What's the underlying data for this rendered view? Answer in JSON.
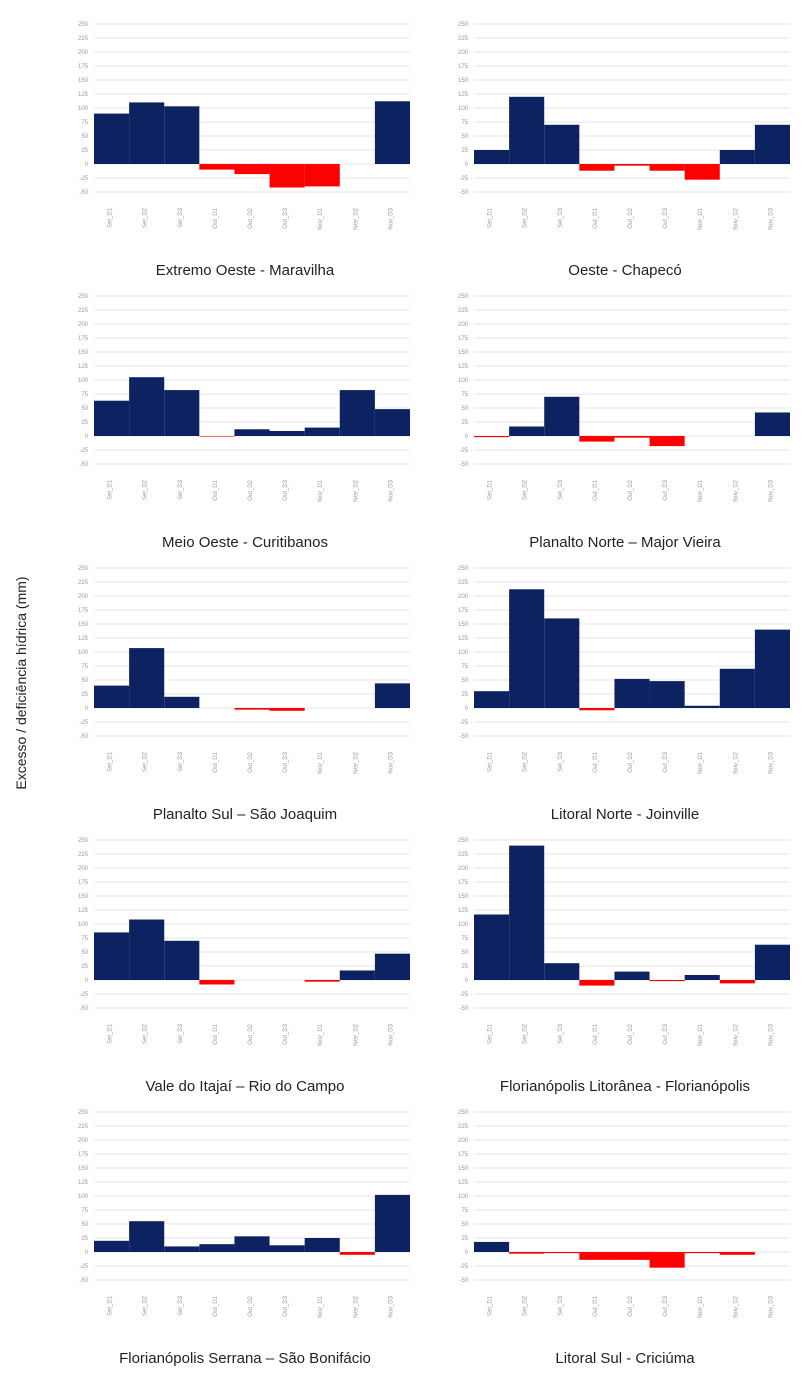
{
  "ylabel": "Excesso / deficiência hídrica (mm)",
  "colors": {
    "positive": "#0d2361",
    "negative": "#ff0000",
    "grid": "#e6e6e6",
    "tick": "#999999"
  },
  "chart_data": [
    {
      "type": "bar",
      "title": "Extremo Oeste - Maravilha",
      "categories": [
        "Set_D1",
        "Set_D2",
        "Set_D3",
        "Out_D1",
        "Out_D2",
        "Out_D3",
        "Nov_D1",
        "Nov_D2",
        "Nov_D3"
      ],
      "values": [
        90,
        110,
        103,
        -10,
        -18,
        -42,
        -40,
        0,
        112
      ],
      "yticks": [
        250,
        225,
        200,
        175,
        150,
        125,
        100,
        75,
        50,
        25,
        0,
        -25,
        -50
      ],
      "ylim": [
        -50,
        250
      ]
    },
    {
      "type": "bar",
      "title": "Oeste - Chapecó",
      "categories": [
        "Set_D1",
        "Set_D2",
        "Set_D3",
        "Out_D1",
        "Out_D2",
        "Out_D3",
        "Nov_D1",
        "Nov_D2",
        "Nov_D3"
      ],
      "values": [
        25,
        120,
        70,
        -12,
        -3,
        -12,
        -28,
        25,
        70
      ],
      "yticks": [
        250,
        225,
        200,
        175,
        150,
        125,
        100,
        75,
        50,
        25,
        0,
        -25,
        -50
      ],
      "ylim": [
        -50,
        250
      ]
    },
    {
      "type": "bar",
      "title": "Meio Oeste - Curitibanos",
      "categories": [
        "Set_D1",
        "Set_D2",
        "Set_D3",
        "Out_D1",
        "Out_D2",
        "Out_D3",
        "Nov_D1",
        "Nov_D2",
        "Nov_D3"
      ],
      "values": [
        63,
        105,
        82,
        -1,
        12,
        9,
        15,
        82,
        48
      ],
      "yticks": [
        250,
        225,
        200,
        175,
        150,
        125,
        100,
        75,
        50,
        25,
        0,
        -25,
        -50
      ],
      "ylim": [
        -50,
        250
      ]
    },
    {
      "type": "bar",
      "title": "Planalto Norte – Major Vieira",
      "categories": [
        "Set_D1",
        "Set_D2",
        "Set_D3",
        "Out_D1",
        "Out_D2",
        "Out_D3",
        "Nov_D1",
        "Nov_D2",
        "Nov_D3"
      ],
      "values": [
        -2,
        17,
        70,
        -10,
        -3,
        -18,
        0,
        0,
        42
      ],
      "yticks": [
        250,
        225,
        200,
        175,
        150,
        125,
        100,
        75,
        50,
        25,
        0,
        -25,
        -50
      ],
      "ylim": [
        -50,
        250
      ]
    },
    {
      "type": "bar",
      "title": "Planalto Sul – São Joaquim",
      "categories": [
        "Set_D1",
        "Set_D2",
        "Set_D3",
        "Out_D1",
        "Out_D2",
        "Out_D3",
        "Nov_D1",
        "Nov_D2",
        "Nov_D3"
      ],
      "values": [
        40,
        107,
        20,
        0,
        -3,
        -5,
        0,
        0,
        44
      ],
      "yticks": [
        250,
        225,
        200,
        175,
        150,
        125,
        100,
        75,
        50,
        25,
        0,
        -25,
        -50
      ],
      "ylim": [
        -50,
        250
      ]
    },
    {
      "type": "bar",
      "title": "Litoral Norte - Joinville",
      "categories": [
        "Set_D1",
        "Set_D2",
        "Set_D3",
        "Out_D1",
        "Out_D2",
        "Out_D3",
        "Nov_D1",
        "Nov_D2",
        "Nov_D3"
      ],
      "values": [
        30,
        212,
        160,
        -4,
        52,
        48,
        4,
        70,
        140
      ],
      "yticks": [
        250,
        225,
        200,
        175,
        150,
        125,
        100,
        75,
        50,
        25,
        0,
        -25,
        -50
      ],
      "ylim": [
        -50,
        250
      ]
    },
    {
      "type": "bar",
      "title": "Vale do Itajaí – Rio do Campo",
      "categories": [
        "Set_D1",
        "Set_D2",
        "Set_D3",
        "Out_D1",
        "Out_D2",
        "Out_D3",
        "Nov_D1",
        "Nov_D2",
        "Nov_D3"
      ],
      "values": [
        85,
        108,
        70,
        -8,
        0,
        0,
        -3,
        17,
        47
      ],
      "yticks": [
        250,
        225,
        200,
        175,
        150,
        125,
        100,
        75,
        50,
        25,
        0,
        -25,
        -50
      ],
      "ylim": [
        -50,
        250
      ]
    },
    {
      "type": "bar",
      "title": "Florianópolis Litorânea - Florianópolis",
      "categories": [
        "Set_D1",
        "Set_D2",
        "Set_D3",
        "Out_D1",
        "Out_D2",
        "Out_D3",
        "Nov_D1",
        "Nov_D2",
        "Nov_D3"
      ],
      "values": [
        117,
        240,
        30,
        -10,
        15,
        -2,
        9,
        -6,
        63
      ],
      "yticks": [
        250,
        225,
        200,
        175,
        150,
        125,
        100,
        75,
        50,
        25,
        0,
        -25,
        -50
      ],
      "ylim": [
        -50,
        250
      ]
    },
    {
      "type": "bar",
      "title": "Florianópolis Serrana – São Bonifácio",
      "categories": [
        "Set_D1",
        "Set_D2",
        "Set_D3",
        "Out_D1",
        "Out_D2",
        "Out_D3",
        "Nov_D1",
        "Nov_D2",
        "Nov_D3"
      ],
      "values": [
        20,
        55,
        10,
        14,
        28,
        12,
        25,
        -5,
        102
      ],
      "yticks": [
        250,
        225,
        200,
        175,
        150,
        125,
        100,
        75,
        50,
        25,
        0,
        -25,
        -50
      ],
      "ylim": [
        -50,
        250
      ]
    },
    {
      "type": "bar",
      "title": "Litoral Sul - Criciúma",
      "categories": [
        "Set_D1",
        "Set_D2",
        "Set_D3",
        "Out_D1",
        "Out_D2",
        "Out_D3",
        "Nov_D1",
        "Nov_D2",
        "Nov_D3"
      ],
      "values": [
        18,
        -3,
        -2,
        -14,
        -14,
        -28,
        -2,
        -5,
        0
      ],
      "yticks": [
        250,
        225,
        200,
        175,
        150,
        125,
        100,
        75,
        50,
        25,
        0,
        -25,
        -50
      ],
      "ylim": [
        -50,
        250
      ]
    }
  ]
}
